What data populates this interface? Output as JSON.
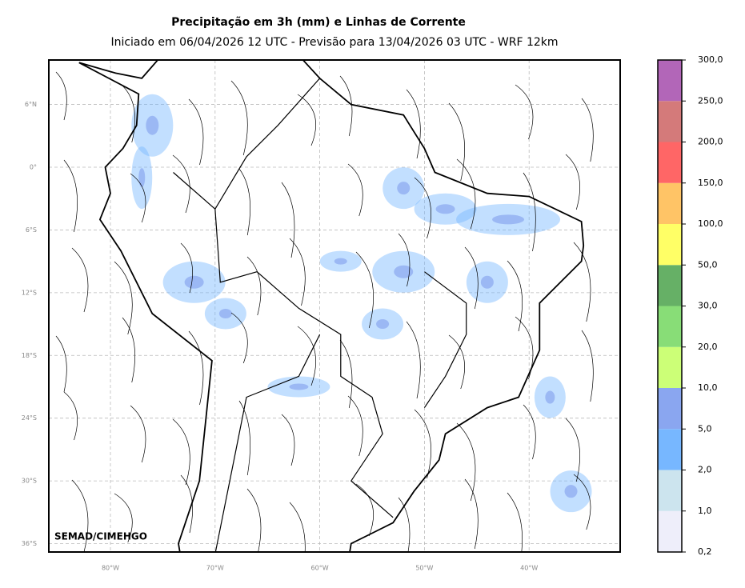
{
  "header": {
    "title": "Precipitação em 3h (mm) e Linhas de Corrente",
    "subtitle": "Iniciado em 06/04/2026 12 UTC - Previsão para 13/04/2026 03 UTC - WRF 12km"
  },
  "map": {
    "lat_labels": [
      "6°N",
      "0°",
      "6°S",
      "12°S",
      "18°S",
      "24°S",
      "30°S",
      "36°S"
    ],
    "lon_labels": [
      "80°W",
      "70°W",
      "60°W",
      "50°W",
      "40°W"
    ],
    "credit": "SEMAD/CIMEHGO"
  },
  "colorbar": {
    "labels": [
      "0,2",
      "1,0",
      "2,0",
      "5,0",
      "10,0",
      "20,0",
      "30,0",
      "50,0",
      "100,0",
      "150,0",
      "200,0",
      "250,0",
      "300,0"
    ],
    "colors": [
      "#eeeefa",
      "#cce4ee",
      "#77b7ff",
      "#8aa6f0",
      "#ccff77",
      "#88dd77",
      "#66b066",
      "#ffff66",
      "#ffc466",
      "#ff6666",
      "#d47a7a",
      "#b266b8"
    ]
  }
}
